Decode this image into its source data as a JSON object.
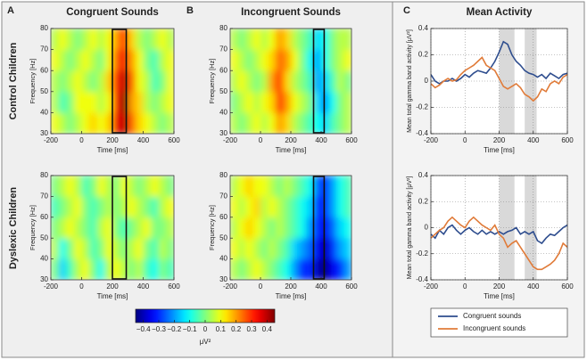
{
  "row_labels": [
    "Control Children",
    "Dyslexic Children"
  ],
  "colorbar": {
    "colormap": "jet",
    "lim": [
      -0.45,
      0.45
    ],
    "ticks": [
      {
        "value": -0.4,
        "label": "−0.4"
      },
      {
        "value": -0.3,
        "label": "−0.3"
      },
      {
        "value": -0.2,
        "label": "−0.2"
      },
      {
        "value": -0.1,
        "label": "−0.1"
      },
      0,
      0.1,
      0.2,
      0.3,
      0.4
    ],
    "label": "μV²"
  },
  "chart_data": [
    {
      "type": "heatmap",
      "panel": "A",
      "title": "Congruent Sounds",
      "xlabel": "Time [ms]",
      "ylabel": "Frequency [Hz]",
      "xlim": [
        -200,
        600
      ],
      "ylim": [
        30,
        80
      ],
      "xticks": [
        -200,
        0,
        200,
        400,
        600
      ],
      "yticks": [
        30,
        40,
        50,
        60,
        70,
        80
      ],
      "xbins": [
        -200,
        -150,
        -100,
        -50,
        0,
        50,
        100,
        150,
        200,
        250,
        300,
        350,
        400,
        450,
        500,
        550,
        600
      ],
      "ybins": [
        30,
        40,
        50,
        60,
        70,
        80
      ],
      "highlight": [
        200,
        290
      ],
      "values": [
        [
          0.1,
          0.05,
          0.0,
          0.05,
          0.1,
          0.15,
          0.1,
          0.15,
          0.35,
          0.4,
          0.25,
          0.15,
          0.1,
          0.05,
          0.0,
          0.05
        ],
        [
          0.05,
          -0.05,
          0.0,
          0.1,
          0.1,
          0.1,
          0.05,
          0.1,
          0.3,
          0.45,
          0.2,
          0.15,
          0.05,
          0.0,
          0.05,
          0.1
        ],
        [
          0.05,
          0.0,
          0.05,
          0.1,
          0.05,
          0.0,
          0.05,
          0.15,
          0.3,
          0.4,
          0.25,
          0.1,
          0.05,
          -0.05,
          0.0,
          0.1
        ],
        [
          0.1,
          0.05,
          0.0,
          0.05,
          0.1,
          0.05,
          0.0,
          0.1,
          0.25,
          0.35,
          0.2,
          0.1,
          0.0,
          -0.05,
          0.05,
          0.1
        ],
        [
          0.05,
          0.1,
          0.05,
          0.0,
          0.05,
          0.1,
          0.05,
          0.1,
          0.2,
          0.3,
          0.15,
          0.05,
          0.0,
          0.05,
          0.1,
          0.05
        ]
      ]
    },
    {
      "type": "heatmap",
      "panel": "B",
      "title": "Incongruent Sounds",
      "xlabel": "Time [ms]",
      "ylabel": "Frequency [Hz]",
      "xlim": [
        -200,
        600
      ],
      "ylim": [
        30,
        80
      ],
      "xticks": [
        -200,
        0,
        200,
        400,
        600
      ],
      "yticks": [
        30,
        40,
        50,
        60,
        70,
        80
      ],
      "xbins": [
        -200,
        -150,
        -100,
        -50,
        0,
        50,
        100,
        150,
        200,
        250,
        300,
        350,
        400,
        450,
        500,
        550,
        600
      ],
      "ybins": [
        30,
        40,
        50,
        60,
        70,
        80
      ],
      "highlight": [
        350,
        420
      ],
      "values": [
        [
          0.05,
          0.0,
          0.05,
          0.1,
          0.05,
          0.1,
          0.2,
          0.15,
          0.05,
          0.0,
          -0.05,
          -0.1,
          -0.15,
          -0.05,
          0.0,
          0.05
        ],
        [
          0.0,
          0.05,
          0.1,
          0.05,
          0.1,
          0.15,
          0.3,
          0.2,
          0.1,
          0.05,
          0.0,
          -0.15,
          -0.2,
          -0.1,
          0.0,
          0.05
        ],
        [
          0.05,
          0.1,
          0.05,
          0.0,
          0.05,
          0.2,
          0.3,
          0.15,
          0.05,
          0.0,
          -0.05,
          -0.2,
          -0.15,
          -0.05,
          0.05,
          0.0
        ],
        [
          0.1,
          0.05,
          0.0,
          0.05,
          0.1,
          0.15,
          0.25,
          0.2,
          0.1,
          0.0,
          -0.1,
          -0.2,
          -0.1,
          0.0,
          0.05,
          0.1
        ],
        [
          0.05,
          0.0,
          0.05,
          0.1,
          0.05,
          0.1,
          0.2,
          0.15,
          0.05,
          0.0,
          -0.05,
          -0.15,
          -0.1,
          0.0,
          0.05,
          0.05
        ]
      ]
    },
    {
      "type": "heatmap",
      "xlabel": "Time [ms]",
      "ylabel": "Frequency [Hz]",
      "xlim": [
        -200,
        600
      ],
      "ylim": [
        30,
        80
      ],
      "xticks": [
        -200,
        0,
        200,
        400,
        600
      ],
      "yticks": [
        30,
        40,
        50,
        60,
        70,
        80
      ],
      "xbins": [
        -200,
        -150,
        -100,
        -50,
        0,
        50,
        100,
        150,
        200,
        250,
        300,
        350,
        400,
        450,
        500,
        550,
        600
      ],
      "ybins": [
        30,
        40,
        50,
        60,
        70,
        80
      ],
      "highlight": [
        200,
        290
      ],
      "values": [
        [
          0.0,
          -0.15,
          -0.05,
          0.05,
          0.1,
          0.0,
          -0.1,
          0.05,
          0.1,
          0.05,
          0.0,
          0.05,
          -0.05,
          -0.1,
          0.0,
          -0.05
        ],
        [
          0.05,
          -0.1,
          0.0,
          0.1,
          0.05,
          -0.05,
          0.0,
          0.1,
          0.05,
          0.0,
          0.05,
          0.1,
          0.0,
          -0.05,
          0.05,
          0.0
        ],
        [
          0.0,
          0.05,
          0.1,
          0.05,
          0.0,
          -0.05,
          0.05,
          0.1,
          0.0,
          -0.05,
          0.0,
          0.05,
          0.1,
          0.0,
          0.0,
          0.05
        ],
        [
          -0.05,
          0.0,
          0.05,
          0.1,
          0.0,
          -0.05,
          0.0,
          0.05,
          0.0,
          0.05,
          0.1,
          0.05,
          0.0,
          -0.05,
          0.05,
          0.1
        ],
        [
          0.0,
          0.05,
          0.1,
          0.05,
          -0.05,
          0.0,
          0.1,
          0.05,
          0.0,
          0.1,
          0.05,
          0.0,
          0.05,
          0.1,
          0.05,
          0.0
        ]
      ]
    },
    {
      "type": "heatmap",
      "xlabel": "Time [ms]",
      "ylabel": "Frequency [Hz]",
      "xlim": [
        -200,
        600
      ],
      "ylim": [
        30,
        80
      ],
      "xticks": [
        -200,
        0,
        200,
        400,
        600
      ],
      "yticks": [
        30,
        40,
        50,
        60,
        70,
        80
      ],
      "xbins": [
        -200,
        -150,
        -100,
        -50,
        0,
        50,
        100,
        150,
        200,
        250,
        300,
        350,
        400,
        450,
        500,
        550,
        600
      ],
      "ybins": [
        30,
        40,
        50,
        60,
        70,
        80
      ],
      "highlight": [
        350,
        420
      ],
      "values": [
        [
          0.05,
          0.0,
          0.05,
          0.1,
          0.05,
          0.0,
          -0.05,
          -0.1,
          -0.2,
          -0.3,
          -0.3,
          -0.4,
          -0.45,
          -0.35,
          -0.3,
          -0.2
        ],
        [
          0.1,
          0.05,
          0.1,
          0.05,
          0.0,
          0.05,
          0.0,
          -0.05,
          -0.15,
          -0.2,
          -0.25,
          -0.35,
          -0.4,
          -0.3,
          -0.2,
          -0.15
        ],
        [
          0.05,
          0.1,
          0.15,
          0.1,
          0.05,
          0.0,
          0.05,
          0.0,
          -0.05,
          -0.1,
          -0.2,
          -0.3,
          -0.35,
          -0.25,
          -0.15,
          -0.1
        ],
        [
          0.1,
          0.05,
          0.1,
          0.15,
          0.05,
          0.1,
          0.05,
          0.0,
          -0.05,
          -0.1,
          -0.15,
          -0.3,
          -0.3,
          -0.2,
          -0.1,
          -0.05
        ],
        [
          0.05,
          0.1,
          0.15,
          0.1,
          0.1,
          0.05,
          0.0,
          0.05,
          0.0,
          -0.05,
          -0.1,
          -0.25,
          -0.3,
          -0.2,
          -0.1,
          -0.05
        ]
      ]
    },
    {
      "type": "line",
      "panel": "C",
      "title": "Mean Activity",
      "xlabel": "Time [ms]",
      "ylabel": "Mean total gamma band activity [μV²]",
      "xlim": [
        -200,
        600
      ],
      "ylim": [
        -0.4,
        0.4
      ],
      "xticks": [
        -200,
        0,
        200,
        400,
        600
      ],
      "yticks": [
        -0.4,
        -0.2,
        0,
        0.2,
        0.4
      ],
      "grid": true,
      "bands": [
        [
          200,
          290
        ],
        [
          350,
          420
        ]
      ],
      "x": [
        -200,
        -175,
        -150,
        -125,
        -100,
        -75,
        -50,
        -25,
        0,
        25,
        50,
        75,
        100,
        125,
        150,
        175,
        200,
        225,
        250,
        275,
        300,
        325,
        350,
        375,
        400,
        425,
        450,
        475,
        500,
        525,
        550,
        575,
        600
      ],
      "series": [
        {
          "name": "Congruent sounds",
          "color": "#2e4d8e",
          "values": [
            0.05,
            0.0,
            -0.02,
            0.0,
            0.0,
            0.02,
            0.0,
            0.02,
            0.05,
            0.03,
            0.06,
            0.08,
            0.07,
            0.06,
            0.1,
            0.15,
            0.22,
            0.3,
            0.28,
            0.2,
            0.15,
            0.12,
            0.08,
            0.06,
            0.05,
            0.03,
            0.05,
            0.02,
            0.06,
            0.04,
            0.02,
            0.05,
            0.06
          ]
        },
        {
          "name": "Incongruent sounds",
          "color": "#e07b39",
          "values": [
            -0.02,
            -0.05,
            -0.03,
            0.0,
            0.02,
            0.0,
            0.01,
            0.05,
            0.08,
            0.1,
            0.12,
            0.15,
            0.18,
            0.12,
            0.1,
            0.08,
            0.02,
            -0.04,
            -0.06,
            -0.04,
            -0.02,
            -0.05,
            -0.1,
            -0.12,
            -0.15,
            -0.12,
            -0.06,
            -0.08,
            -0.02,
            0.0,
            -0.02,
            0.03,
            0.05
          ]
        }
      ]
    },
    {
      "type": "line",
      "xlabel": "Time [ms]",
      "ylabel": "Mean total gamma band activity [μV²]",
      "xlim": [
        -200,
        600
      ],
      "ylim": [
        -0.4,
        0.4
      ],
      "xticks": [
        -200,
        0,
        200,
        400,
        600
      ],
      "yticks": [
        -0.4,
        -0.2,
        0,
        0.2,
        0.4
      ],
      "grid": true,
      "bands": [
        [
          200,
          290
        ],
        [
          350,
          420
        ]
      ],
      "legend": "below",
      "x": [
        -200,
        -175,
        -150,
        -125,
        -100,
        -75,
        -50,
        -25,
        0,
        25,
        50,
        75,
        100,
        125,
        150,
        175,
        200,
        225,
        250,
        275,
        300,
        325,
        350,
        375,
        400,
        425,
        450,
        475,
        500,
        525,
        550,
        575,
        600
      ],
      "series": [
        {
          "name": "Congruent sounds",
          "color": "#2e4d8e",
          "values": [
            -0.05,
            -0.08,
            -0.02,
            -0.05,
            0.0,
            0.02,
            -0.02,
            -0.05,
            -0.02,
            0.0,
            -0.03,
            -0.05,
            -0.02,
            -0.05,
            -0.03,
            -0.05,
            -0.03,
            -0.05,
            -0.03,
            -0.02,
            0.0,
            -0.05,
            -0.03,
            -0.05,
            -0.03,
            -0.1,
            -0.12,
            -0.08,
            -0.05,
            -0.06,
            -0.03,
            0.0,
            0.02
          ]
        },
        {
          "name": "Incongruent sounds",
          "color": "#e07b39",
          "values": [
            -0.08,
            -0.05,
            -0.02,
            0.0,
            0.05,
            0.08,
            0.05,
            0.02,
            0.0,
            0.05,
            0.08,
            0.05,
            0.02,
            0.0,
            -0.02,
            0.02,
            -0.05,
            -0.08,
            -0.15,
            -0.12,
            -0.1,
            -0.15,
            -0.2,
            -0.25,
            -0.3,
            -0.32,
            -0.32,
            -0.3,
            -0.28,
            -0.25,
            -0.2,
            -0.12,
            -0.15
          ]
        }
      ]
    }
  ]
}
